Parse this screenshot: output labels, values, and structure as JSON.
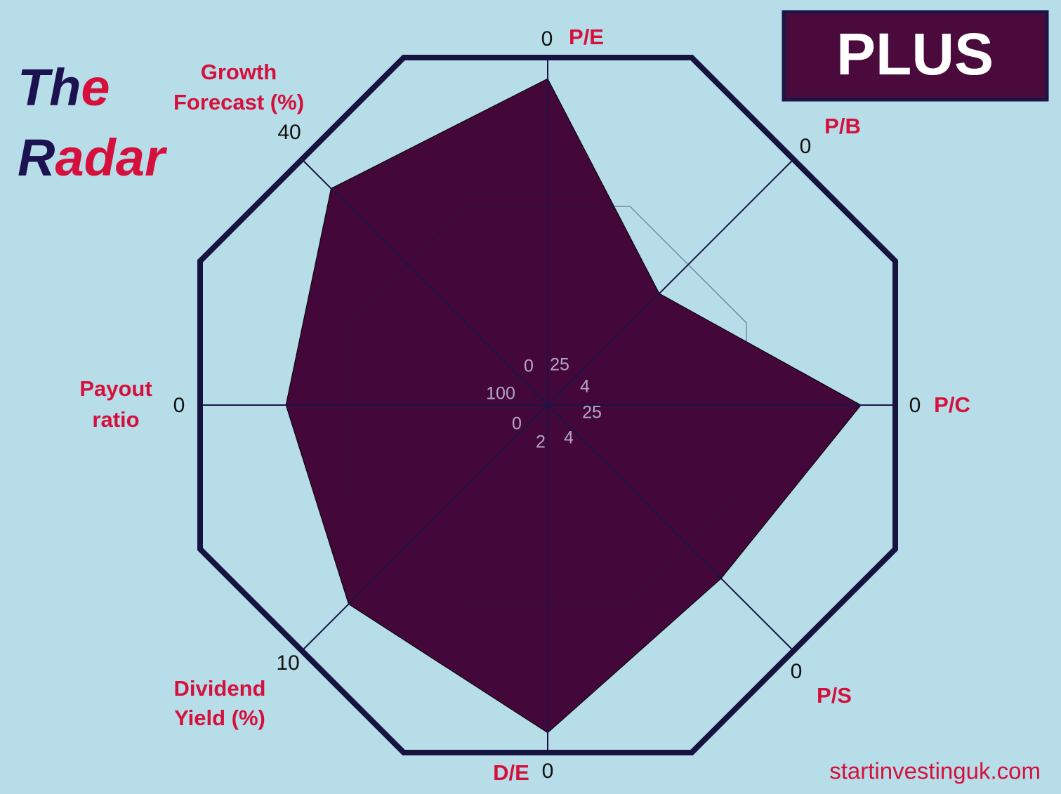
{
  "chart_data": {
    "type": "radar",
    "title": [
      [
        {
          "text": "Th",
          "color": "#1c1250"
        },
        {
          "text": "e",
          "color": "#d6103c"
        }
      ],
      [
        {
          "text": "R",
          "color": "#1c1250"
        },
        {
          "text": "adar",
          "color": "#d6103c"
        }
      ]
    ],
    "badge": "PLUS",
    "footer": "startinvestinguk.com",
    "axes": [
      {
        "label": [
          "P/E"
        ],
        "lim": [
          25,
          0
        ]
      },
      {
        "label": [
          "P/B"
        ],
        "lim": [
          4,
          0
        ]
      },
      {
        "label": [
          "P/C"
        ],
        "lim": [
          25,
          0
        ]
      },
      {
        "label": [
          "P/S"
        ],
        "lim": [
          4,
          0
        ]
      },
      {
        "label": [
          "D/E"
        ],
        "lim": [
          2,
          0
        ]
      },
      {
        "label": [
          "Dividend",
          "Yield (%)"
        ],
        "lim": [
          0,
          10
        ]
      },
      {
        "label": [
          "Payout",
          "ratio"
        ],
        "lim": [
          100,
          0
        ]
      },
      {
        "label": [
          "Growth",
          "Forecast (%)"
        ],
        "lim": [
          0,
          40
        ]
      }
    ],
    "series": [
      {
        "color": "#44073a",
        "values": [
          1.6,
          2.3,
          2.6,
          1.24,
          0.12,
          8.0,
          26,
          35
        ]
      }
    ]
  }
}
